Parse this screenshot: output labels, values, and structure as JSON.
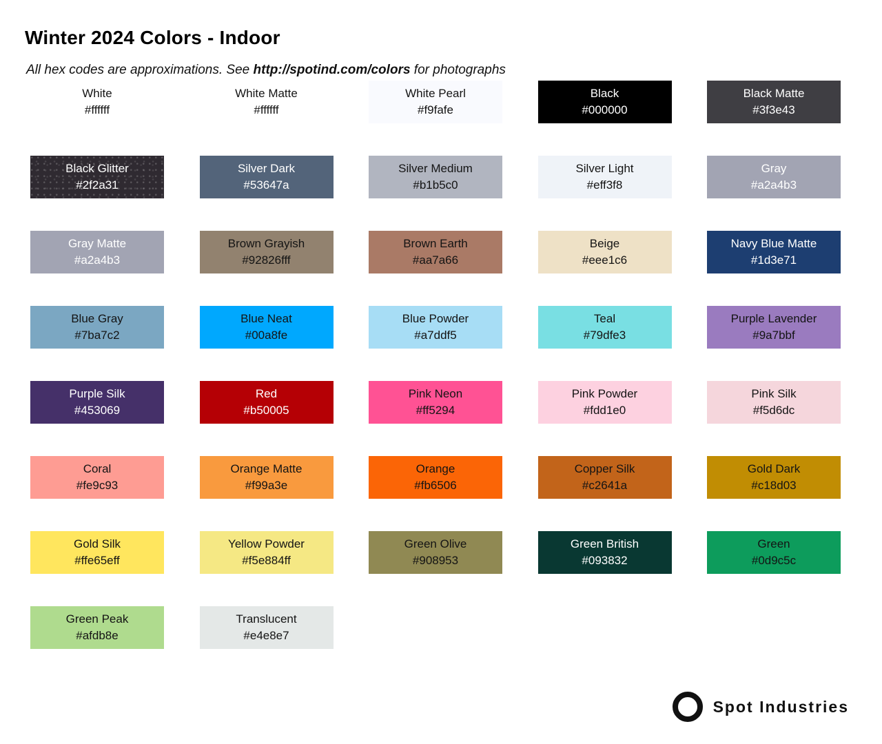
{
  "header": {
    "title": "Winter 2024 Colors - Indoor",
    "subtitle_prefix": "All hex codes are approximations. See ",
    "subtitle_link": "http://spotind.com/colors",
    "subtitle_suffix": " for photographs"
  },
  "swatches": [
    {
      "name": "White",
      "hex": "#ffffff",
      "bg": "#ffffff",
      "text": "dark"
    },
    {
      "name": "White Matte",
      "hex": "#ffffff",
      "bg": "#ffffff",
      "text": "dark"
    },
    {
      "name": "White Pearl",
      "hex": "#f9fafe",
      "bg": "#f9fafe",
      "text": "dark"
    },
    {
      "name": "Black",
      "hex": "#000000",
      "bg": "#000000",
      "text": "light"
    },
    {
      "name": "Black Matte",
      "hex": "#3f3e43",
      "bg": "#3f3e43",
      "text": "light"
    },
    {
      "name": "Black Glitter",
      "hex": "#2f2a31",
      "bg": "#2f2a31",
      "text": "light",
      "texture": "glitter"
    },
    {
      "name": "Silver Dark",
      "hex": "#53647a",
      "bg": "#53647a",
      "text": "light"
    },
    {
      "name": "Silver Medium",
      "hex": "#b1b5c0",
      "bg": "#b1b5c0",
      "text": "dark"
    },
    {
      "name": "Silver Light",
      "hex": "#eff3f8",
      "bg": "#eff3f8",
      "text": "dark"
    },
    {
      "name": "Gray",
      "hex": "#a2a4b3",
      "bg": "#a2a4b3",
      "text": "light"
    },
    {
      "name": "Gray Matte",
      "hex": "#a2a4b3",
      "bg": "#a2a4b3",
      "text": "light"
    },
    {
      "name": "Brown Grayish",
      "hex": "#92826fff",
      "bg": "#92826f",
      "text": "dark"
    },
    {
      "name": "Brown Earth",
      "hex": "#aa7a66",
      "bg": "#aa7a66",
      "text": "dark"
    },
    {
      "name": "Beige",
      "hex": "#eee1c6",
      "bg": "#eee1c6",
      "text": "dark"
    },
    {
      "name": "Navy Blue Matte",
      "hex": "#1d3e71",
      "bg": "#1d3e71",
      "text": "light"
    },
    {
      "name": "Blue Gray",
      "hex": "#7ba7c2",
      "bg": "#7ba7c2",
      "text": "dark"
    },
    {
      "name": "Blue Neat",
      "hex": "#00a8fe",
      "bg": "#00a8fe",
      "text": "dark"
    },
    {
      "name": "Blue Powder",
      "hex": "#a7ddf5",
      "bg": "#a7ddf5",
      "text": "dark"
    },
    {
      "name": "Teal",
      "hex": "#79dfe3",
      "bg": "#79dfe3",
      "text": "dark"
    },
    {
      "name": "Purple Lavender",
      "hex": "#9a7bbf",
      "bg": "#9a7bbf",
      "text": "dark"
    },
    {
      "name": "Purple Silk",
      "hex": "#453069",
      "bg": "#453069",
      "text": "light"
    },
    {
      "name": "Red",
      "hex": "#b50005",
      "bg": "#b50005",
      "text": "light"
    },
    {
      "name": "Pink Neon",
      "hex": "#ff5294",
      "bg": "#ff5294",
      "text": "dark"
    },
    {
      "name": "Pink Powder",
      "hex": "#fdd1e0",
      "bg": "#fdd1e0",
      "text": "dark"
    },
    {
      "name": "Pink Silk",
      "hex": "#f5d6dc",
      "bg": "#f5d6dc",
      "text": "dark"
    },
    {
      "name": "Coral",
      "hex": "#fe9c93",
      "bg": "#fe9c93",
      "text": "dark"
    },
    {
      "name": "Orange Matte",
      "hex": "#f99a3e",
      "bg": "#f99a3e",
      "text": "dark"
    },
    {
      "name": "Orange",
      "hex": "#fb6506",
      "bg": "#fb6506",
      "text": "dark"
    },
    {
      "name": "Copper Silk",
      "hex": "#c2641a",
      "bg": "#c2641a",
      "text": "dark"
    },
    {
      "name": "Gold Dark",
      "hex": "#c18d03",
      "bg": "#c18d03",
      "text": "dark"
    },
    {
      "name": "Gold Silk",
      "hex": "#ffe65eff",
      "bg": "#ffe65e",
      "text": "dark"
    },
    {
      "name": "Yellow Powder",
      "hex": "#f5e884ff",
      "bg": "#f5e884",
      "text": "dark"
    },
    {
      "name": "Green Olive",
      "hex": "#908953",
      "bg": "#908953",
      "text": "dark"
    },
    {
      "name": "Green British",
      "hex": "#093832",
      "bg": "#093832",
      "text": "light"
    },
    {
      "name": "Green",
      "hex": "#0d9c5c",
      "bg": "#0d9c5c",
      "text": "dark"
    },
    {
      "name": "Green Peak",
      "hex": "#afdb8e",
      "bg": "#afdb8e",
      "text": "dark"
    },
    {
      "name": "Translucent",
      "hex": "#e4e8e7",
      "bg": "#e4e8e7",
      "text": "dark"
    }
  ],
  "footer": {
    "brand": "Spot Industries"
  }
}
